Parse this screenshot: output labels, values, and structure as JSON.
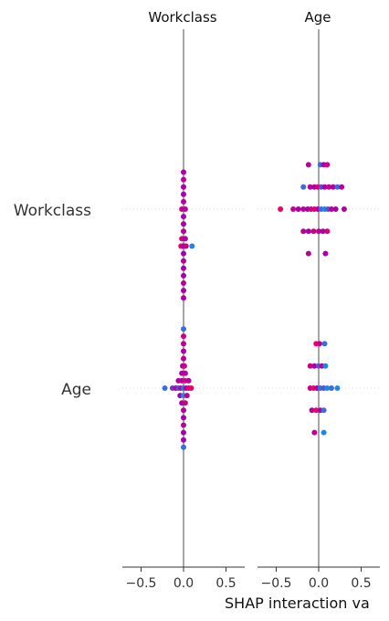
{
  "chart_data": {
    "type": "scatter",
    "xlabel": "SHAP interaction va",
    "column_titles": [
      "Workclass",
      "Age"
    ],
    "row_labels": [
      "Workclass",
      "Age"
    ],
    "xlim": [
      -0.72,
      0.72
    ],
    "xticks": [
      -0.5,
      0.0,
      0.5
    ],
    "xtick_labels": [
      "−0.5",
      "0.0",
      "0.5"
    ],
    "grid": false,
    "colors": {
      "low": "#1e88e5",
      "mid": "#aa00aa",
      "high": "#ff0052",
      "zero_line": "#888888",
      "row_guide": "#cccccc"
    },
    "panels": [
      {
        "row": "Workclass",
        "column": "Workclass",
        "points": [
          {
            "x": 0.0,
            "o": -5,
            "c": 0.5
          },
          {
            "x": 0.0,
            "o": -4,
            "c": 0.6
          },
          {
            "x": 0.0,
            "o": -3,
            "c": 0.5
          },
          {
            "x": 0.0,
            "o": -2,
            "c": 0.5
          },
          {
            "x": 0.0,
            "o": -1,
            "c": 0.55
          },
          {
            "x": -0.02,
            "o": 0,
            "c": 0.7
          },
          {
            "x": 0.02,
            "o": 0,
            "c": 0.6
          },
          {
            "x": 0.0,
            "o": 1,
            "c": 0.5
          },
          {
            "x": 0.0,
            "o": 2,
            "c": 0.5
          },
          {
            "x": 0.0,
            "o": 3,
            "c": 0.6
          },
          {
            "x": -0.02,
            "o": 4,
            "c": 0.8
          },
          {
            "x": 0.02,
            "o": 4,
            "c": 0.5
          },
          {
            "x": -0.03,
            "o": 5,
            "c": 0.9
          },
          {
            "x": -0.01,
            "o": 5,
            "c": 0.6
          },
          {
            "x": 0.01,
            "o": 5,
            "c": 0.5
          },
          {
            "x": 0.03,
            "o": 5,
            "c": 0.7
          },
          {
            "x": 0.1,
            "o": 5,
            "c": 0.0
          },
          {
            "x": 0.0,
            "o": 6,
            "c": 0.5
          },
          {
            "x": 0.0,
            "o": 7,
            "c": 0.6
          },
          {
            "x": 0.0,
            "o": 8,
            "c": 0.5
          },
          {
            "x": 0.0,
            "o": 9,
            "c": 0.5
          },
          {
            "x": 0.0,
            "o": 10,
            "c": 0.6
          },
          {
            "x": 0.0,
            "o": 11,
            "c": 0.5
          },
          {
            "x": 0.0,
            "o": 12,
            "c": 0.5
          }
        ]
      },
      {
        "row": "Workclass",
        "column": "Age",
        "points": [
          {
            "x": -0.12,
            "o": -6,
            "c": 0.6
          },
          {
            "x": 0.02,
            "o": -6,
            "c": 0.1
          },
          {
            "x": 0.06,
            "o": -6,
            "c": 0.5
          },
          {
            "x": 0.1,
            "o": -6,
            "c": 0.7
          },
          {
            "x": -0.18,
            "o": -3,
            "c": 0.1
          },
          {
            "x": -0.1,
            "o": -3,
            "c": 0.6
          },
          {
            "x": -0.05,
            "o": -3,
            "c": 0.5
          },
          {
            "x": -0.01,
            "o": -3,
            "c": 0.8
          },
          {
            "x": 0.03,
            "o": -3,
            "c": 0.2
          },
          {
            "x": 0.07,
            "o": -3,
            "c": 0.5
          },
          {
            "x": 0.12,
            "o": -3,
            "c": 0.7
          },
          {
            "x": 0.17,
            "o": -3,
            "c": 0.5
          },
          {
            "x": 0.22,
            "o": -3,
            "c": 0.1
          },
          {
            "x": 0.27,
            "o": -3,
            "c": 0.6
          },
          {
            "x": -0.45,
            "o": 0,
            "c": 0.9
          },
          {
            "x": -0.3,
            "o": 0,
            "c": 0.7
          },
          {
            "x": -0.24,
            "o": 0,
            "c": 0.5
          },
          {
            "x": -0.18,
            "o": 0,
            "c": 0.6
          },
          {
            "x": -0.13,
            "o": 0,
            "c": 0.5
          },
          {
            "x": -0.09,
            "o": 0,
            "c": 0.7
          },
          {
            "x": -0.05,
            "o": 0,
            "c": 0.8
          },
          {
            "x": -0.01,
            "o": 0,
            "c": 0.5
          },
          {
            "x": 0.03,
            "o": 0,
            "c": 0.1
          },
          {
            "x": 0.07,
            "o": 0,
            "c": 0.0
          },
          {
            "x": 0.11,
            "o": 0,
            "c": 0.2
          },
          {
            "x": 0.15,
            "o": 0,
            "c": 0.6
          },
          {
            "x": 0.2,
            "o": 0,
            "c": 0.5
          },
          {
            "x": 0.3,
            "o": 0,
            "c": 0.55
          },
          {
            "x": -0.18,
            "o": 3,
            "c": 0.6
          },
          {
            "x": -0.12,
            "o": 3,
            "c": 0.5
          },
          {
            "x": -0.06,
            "o": 3,
            "c": 0.7
          },
          {
            "x": 0.0,
            "o": 3,
            "c": 0.6
          },
          {
            "x": 0.05,
            "o": 3,
            "c": 0.5
          },
          {
            "x": 0.1,
            "o": 3,
            "c": 0.8
          },
          {
            "x": -0.12,
            "o": 6,
            "c": 0.6
          },
          {
            "x": 0.08,
            "o": 6,
            "c": 0.5
          }
        ]
      },
      {
        "row": "Age",
        "column": "Workclass",
        "points": [
          {
            "x": 0.0,
            "o": -8,
            "c": 0.1
          },
          {
            "x": 0.0,
            "o": -7,
            "c": 0.7
          },
          {
            "x": 0.0,
            "o": -6,
            "c": 0.6
          },
          {
            "x": 0.0,
            "o": -5,
            "c": 0.5
          },
          {
            "x": 0.0,
            "o": -4,
            "c": 0.6
          },
          {
            "x": -0.01,
            "o": -3,
            "c": 0.5
          },
          {
            "x": 0.01,
            "o": -3,
            "c": 0.7
          },
          {
            "x": -0.02,
            "o": -2,
            "c": 0.5
          },
          {
            "x": 0.02,
            "o": -2,
            "c": 0.6
          },
          {
            "x": -0.06,
            "o": -1,
            "c": 0.6
          },
          {
            "x": -0.02,
            "o": -1,
            "c": 0.5
          },
          {
            "x": 0.02,
            "o": -1,
            "c": 0.8
          },
          {
            "x": 0.06,
            "o": -1,
            "c": 0.5
          },
          {
            "x": -0.22,
            "o": 0,
            "c": 0.1
          },
          {
            "x": -0.13,
            "o": 0,
            "c": 0.3
          },
          {
            "x": -0.09,
            "o": 0,
            "c": 0.5
          },
          {
            "x": -0.06,
            "o": 0,
            "c": 0.2
          },
          {
            "x": -0.03,
            "o": 0,
            "c": 0.6
          },
          {
            "x": 0.0,
            "o": 0,
            "c": 0.1
          },
          {
            "x": 0.03,
            "o": 0,
            "c": 0.5
          },
          {
            "x": 0.06,
            "o": 0,
            "c": 0.8
          },
          {
            "x": 0.09,
            "o": 0,
            "c": 0.9
          },
          {
            "x": -0.04,
            "o": 1,
            "c": 0.5
          },
          {
            "x": 0.0,
            "o": 1,
            "c": 0.0
          },
          {
            "x": 0.04,
            "o": 1,
            "c": 0.6
          },
          {
            "x": -0.02,
            "o": 2,
            "c": 0.5
          },
          {
            "x": 0.02,
            "o": 2,
            "c": 0.7
          },
          {
            "x": 0.0,
            "o": 3,
            "c": 0.6
          },
          {
            "x": 0.0,
            "o": 4,
            "c": 0.5
          },
          {
            "x": 0.0,
            "o": 5,
            "c": 0.6
          },
          {
            "x": 0.0,
            "o": 6,
            "c": 0.5
          },
          {
            "x": 0.0,
            "o": 7,
            "c": 0.5
          },
          {
            "x": 0.0,
            "o": 8,
            "c": 0.1
          }
        ]
      },
      {
        "row": "Age",
        "column": "Age",
        "points": [
          {
            "x": -0.03,
            "o": -6,
            "c": 0.9
          },
          {
            "x": 0.01,
            "o": -6,
            "c": 0.6
          },
          {
            "x": 0.07,
            "o": -6,
            "c": 0.1
          },
          {
            "x": -0.1,
            "o": -3,
            "c": 0.7
          },
          {
            "x": -0.05,
            "o": -3,
            "c": 0.5
          },
          {
            "x": 0.0,
            "o": -3,
            "c": 0.2
          },
          {
            "x": 0.04,
            "o": -3,
            "c": 0.6
          },
          {
            "x": 0.08,
            "o": -3,
            "c": 0.0
          },
          {
            "x": -0.1,
            "o": 0,
            "c": 0.7
          },
          {
            "x": -0.06,
            "o": 0,
            "c": 0.9
          },
          {
            "x": -0.02,
            "o": 0,
            "c": 0.5
          },
          {
            "x": 0.02,
            "o": 0,
            "c": 0.1
          },
          {
            "x": 0.06,
            "o": 0,
            "c": 0.2
          },
          {
            "x": 0.1,
            "o": 0,
            "c": 0.0
          },
          {
            "x": 0.15,
            "o": 0,
            "c": 0.1
          },
          {
            "x": 0.22,
            "o": 0,
            "c": 0.0
          },
          {
            "x": -0.08,
            "o": 3,
            "c": 0.6
          },
          {
            "x": -0.03,
            "o": 3,
            "c": 0.9
          },
          {
            "x": 0.02,
            "o": 3,
            "c": 0.5
          },
          {
            "x": 0.06,
            "o": 3,
            "c": 0.1
          },
          {
            "x": -0.05,
            "o": 6,
            "c": 0.6
          },
          {
            "x": 0.06,
            "o": 6,
            "c": 0.0
          }
        ]
      }
    ]
  }
}
